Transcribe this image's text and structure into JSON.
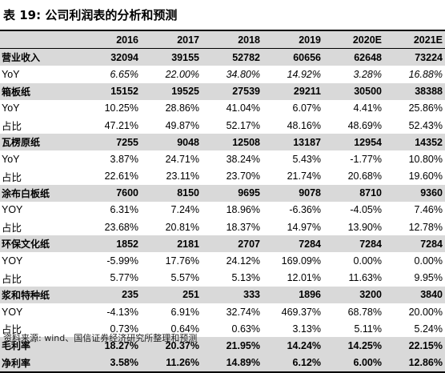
{
  "title": "表 19:  公司利润表的分析和预测",
  "header": [
    "",
    "2016",
    "2017",
    "2018",
    "2019",
    "2020E",
    "2021E"
  ],
  "rows": [
    {
      "label": "营业收入",
      "values": [
        "32094",
        "39155",
        "52782",
        "60656",
        "62648",
        "73224"
      ],
      "style": "sec"
    },
    {
      "label": "YoY",
      "values": [
        "6.65%",
        "22.00%",
        "34.80%",
        "14.92%",
        "3.28%",
        "16.88%"
      ],
      "style": "it"
    },
    {
      "label": "箱板纸",
      "values": [
        "15152",
        "19525",
        "27539",
        "29211",
        "30500",
        "38388"
      ],
      "style": "sec"
    },
    {
      "label": "YoY",
      "values": [
        "10.25%",
        "28.86%",
        "41.04%",
        "6.07%",
        "4.41%",
        "25.86%"
      ],
      "style": "plain"
    },
    {
      "label": "占比",
      "values": [
        "47.21%",
        "49.87%",
        "52.17%",
        "48.16%",
        "48.69%",
        "52.43%"
      ],
      "style": "plain"
    },
    {
      "label": "瓦楞原纸",
      "values": [
        "7255",
        "9048",
        "12508",
        "13187",
        "12954",
        "14352"
      ],
      "style": "sec"
    },
    {
      "label": "YoY",
      "values": [
        "3.87%",
        "24.71%",
        "38.24%",
        "5.43%",
        "-1.77%",
        "10.80%"
      ],
      "style": "plain"
    },
    {
      "label": "占比",
      "values": [
        "22.61%",
        "23.11%",
        "23.70%",
        "21.74%",
        "20.68%",
        "19.60%"
      ],
      "style": "plain"
    },
    {
      "label": "涂布白板纸",
      "values": [
        "7600",
        "8150",
        "9695",
        "9078",
        "8710",
        "9360"
      ],
      "style": "sec"
    },
    {
      "label": "YOY",
      "values": [
        "6.31%",
        "7.24%",
        "18.96%",
        "-6.36%",
        "-4.05%",
        "7.46%"
      ],
      "style": "plain"
    },
    {
      "label": "占比",
      "values": [
        "23.68%",
        "20.81%",
        "18.37%",
        "14.97%",
        "13.90%",
        "12.78%"
      ],
      "style": "plain"
    },
    {
      "label": "环保文化纸",
      "values": [
        "1852",
        "2181",
        "2707",
        "7284",
        "7284",
        "7284"
      ],
      "style": "sec"
    },
    {
      "label": "YOY",
      "values": [
        "-5.99%",
        "17.76%",
        "24.12%",
        "169.09%",
        "0.00%",
        "0.00%"
      ],
      "style": "plain"
    },
    {
      "label": "占比",
      "values": [
        "5.77%",
        "5.57%",
        "5.13%",
        "12.01%",
        "11.63%",
        "9.95%"
      ],
      "style": "plain"
    },
    {
      "label": "浆和特种纸",
      "values": [
        "235",
        "251",
        "333",
        "1896",
        "3200",
        "3840"
      ],
      "style": "sec"
    },
    {
      "label": "YOY",
      "values": [
        "-4.13%",
        "6.91%",
        "32.74%",
        "469.37%",
        "68.78%",
        "20.00%"
      ],
      "style": "plain"
    },
    {
      "label": "占比",
      "values": [
        "0.73%",
        "0.64%",
        "0.63%",
        "3.13%",
        "5.11%",
        "5.24%"
      ],
      "style": "plain"
    },
    {
      "label": "毛利率",
      "values": [
        "18.27%",
        "20.37%",
        "21.95%",
        "14.24%",
        "14.25%",
        "22.15%"
      ],
      "style": "sec"
    },
    {
      "label": "净利率",
      "values": [
        "3.58%",
        "11.26%",
        "14.89%",
        "6.12%",
        "6.00%",
        "12.86%"
      ],
      "style": "sec last"
    }
  ],
  "source": "资料来源:  wind、国信证券经济研究所整理和预测"
}
